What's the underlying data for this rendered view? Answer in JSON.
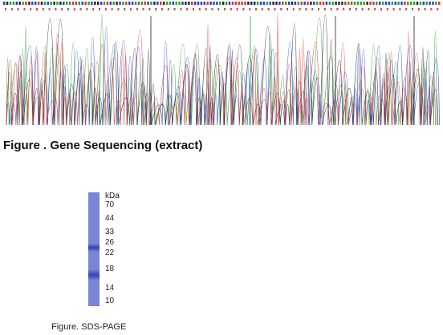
{
  "sequencing_figure": {
    "caption": "Figure . Gene Sequencing (extract)",
    "trace_colors": {
      "A": "#2ca02c",
      "C": "#1f3fd6",
      "G": "#222222",
      "T": "#e03030"
    }
  },
  "sds_page_figure": {
    "caption": "Figure. SDS-PAGE",
    "unit": "kDa",
    "markers": [
      "70",
      "44",
      "33",
      "26",
      "22",
      "18",
      "14",
      "10"
    ],
    "lane_color": "#7a85d6"
  }
}
